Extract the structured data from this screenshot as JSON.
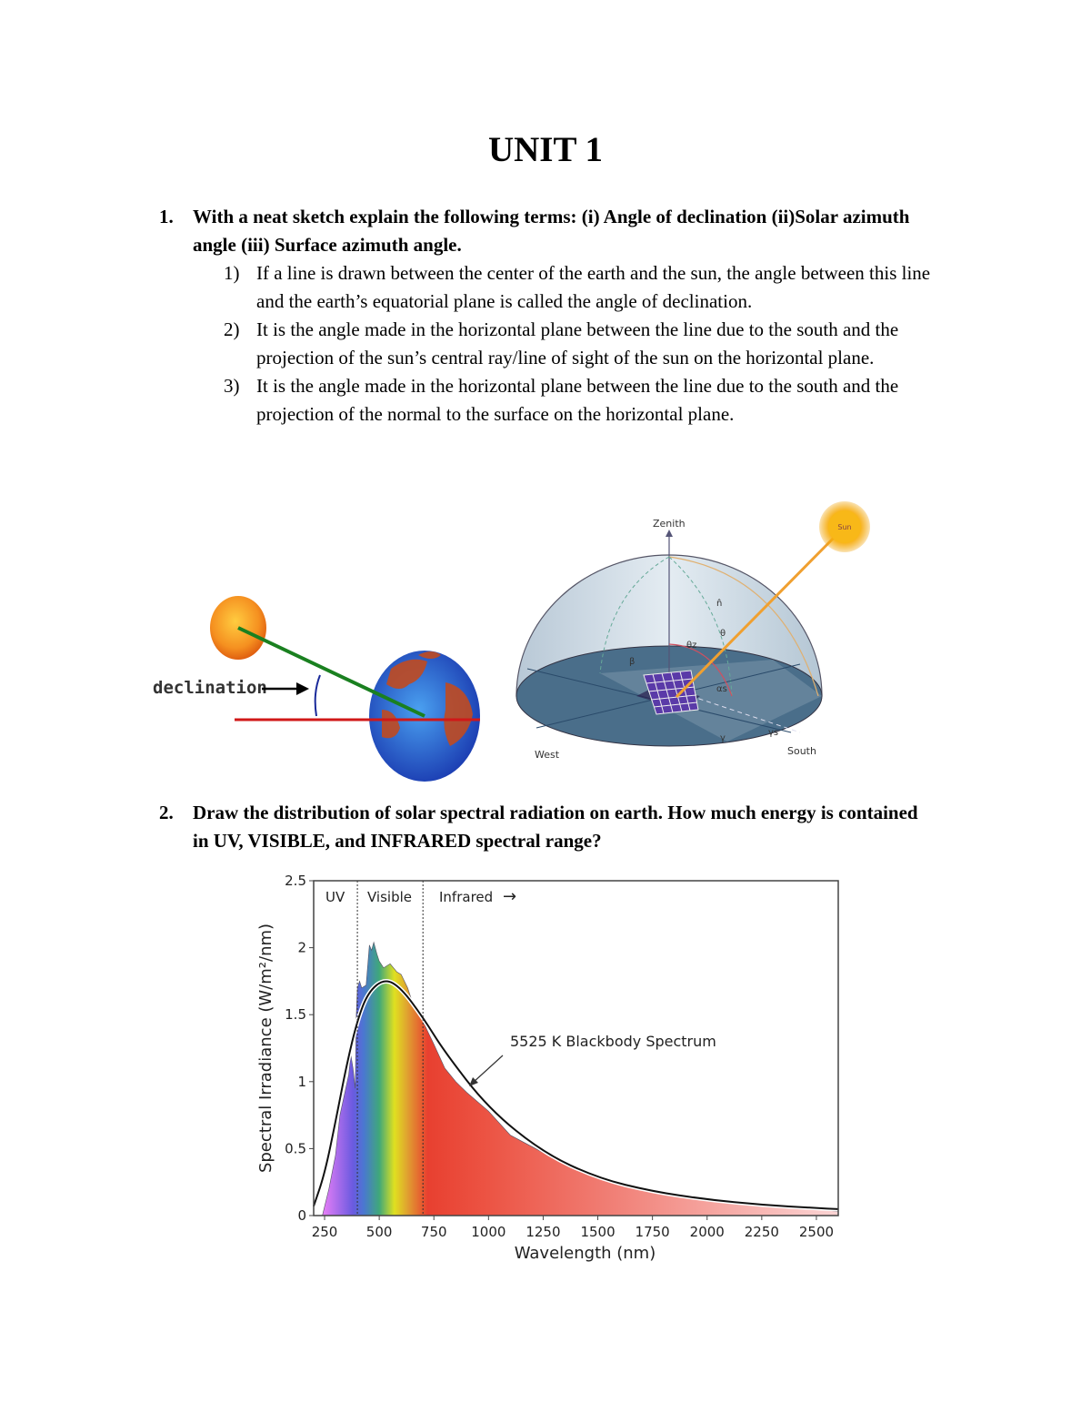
{
  "title": "UNIT 1",
  "questions": [
    {
      "number": "1.",
      "text": "With a neat sketch explain the following terms: (i) Angle of declination (ii)Solar azimuth angle (iii) Surface azimuth angle.",
      "answers": [
        {
          "n": "1)",
          "text": "If a line is drawn between the center of the earth and the sun, the angle between this line and the earth’s equatorial plane is called the angle of declination."
        },
        {
          "n": "2)",
          "text": "It is the angle made in the horizontal plane between the line due to the south and the projection of the sun’s central ray/line of sight of the sun on the horizontal plane."
        },
        {
          "n": "3)",
          "text": "It is the angle made in the horizontal plane between the line due to the south and the projection of the normal to the surface on the horizontal plane."
        }
      ]
    },
    {
      "number": "2.",
      "text": "Draw the distribution of solar spectral radiation on earth. How much energy is contained in UV, VISIBLE, and INFRARED spectral range?"
    }
  ],
  "declination_figure": {
    "label": "declination"
  },
  "dome_figure": {
    "zenith": "Zenith",
    "sun": "Sun",
    "west": "West",
    "south": "South",
    "symbols": {
      "n": "n̂",
      "theta": "θ",
      "theta_z": "θz",
      "beta": "β",
      "alpha_s": "αs",
      "gamma": "γ",
      "gamma_s": "γs"
    }
  },
  "chart_data": {
    "type": "area",
    "xlabel": "Wavelength (nm)",
    "ylabel": "Spectral Irradiance (W/m²/nm)",
    "xlim": [
      200,
      2600
    ],
    "ylim": [
      0,
      2.5
    ],
    "xticks": [
      250,
      500,
      750,
      1000,
      1250,
      1500,
      1750,
      2000,
      2250,
      2500
    ],
    "yticks": [
      0,
      0.5,
      1,
      1.5,
      2,
      2.5
    ],
    "ytick_labels": [
      "0",
      "0.5",
      "1",
      "1.5",
      "2",
      "2.5"
    ],
    "grid": false,
    "regions": [
      {
        "label": "UV",
        "boundary": 400
      },
      {
        "label": "Visible",
        "boundary": 700
      },
      {
        "label": "Infrared",
        "arrow": "→"
      }
    ],
    "annotation": "5525 K Blackbody Spectrum",
    "series": [
      {
        "kind": "filled spectrum",
        "x": [
          240,
          270,
          300,
          320,
          340,
          360,
          370,
          380,
          390,
          395,
          400,
          410,
          420,
          440,
          455,
          465,
          475,
          490,
          500,
          520,
          550,
          580,
          600,
          630,
          650,
          700,
          750,
          800,
          850,
          900,
          1000,
          1100,
          1250,
          1500,
          1750,
          2000,
          2250,
          2500,
          2600
        ],
        "y": [
          0,
          0.2,
          0.45,
          0.75,
          0.9,
          1.05,
          1.2,
          1.1,
          0.95,
          1.5,
          1.7,
          1.75,
          1.7,
          1.72,
          2.02,
          1.98,
          2.04,
          1.95,
          1.9,
          1.85,
          1.88,
          1.82,
          1.8,
          1.7,
          1.6,
          1.45,
          1.28,
          1.1,
          1.0,
          0.92,
          0.78,
          0.6,
          0.47,
          0.29,
          0.18,
          0.11,
          0.07,
          0.05,
          0.03
        ]
      },
      {
        "kind": "line",
        "name": "5525 K Blackbody Spectrum",
        "x": [
          200,
          250,
          300,
          350,
          400,
          450,
          525,
          600,
          700,
          800,
          1000,
          1250,
          1500,
          1750,
          2000,
          2250,
          2500,
          2600
        ],
        "y": [
          0.07,
          0.31,
          0.7,
          1.12,
          1.46,
          1.67,
          1.77,
          1.7,
          1.48,
          1.22,
          0.8,
          0.47,
          0.28,
          0.18,
          0.12,
          0.08,
          0.056,
          0.048
        ]
      }
    ],
    "colors": {
      "uv": "#e07cf5",
      "violet": "#6a5ae0",
      "blue": "#4a78d0",
      "green": "#3fa87a",
      "yellow": "#e0e020",
      "orange": "#e0a030",
      "red": "#e84030",
      "ir_tail": "#fbd4d4"
    }
  }
}
